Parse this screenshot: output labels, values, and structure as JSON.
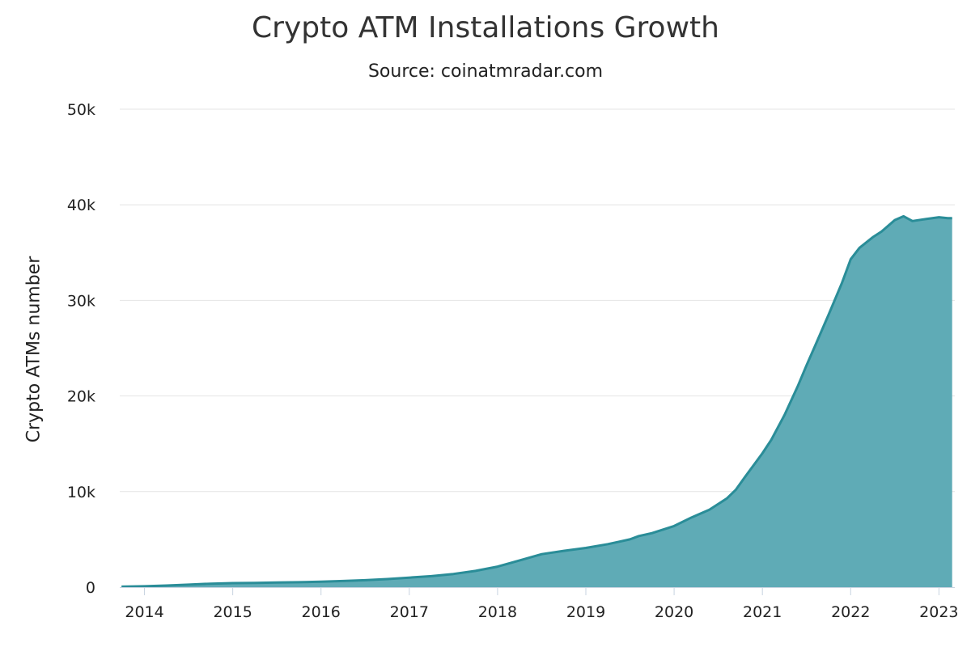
{
  "chart_data": {
    "type": "area",
    "title": "Crypto ATM Installations Growth",
    "subtitle": "Source: coinatmradar.com",
    "xlabel": "",
    "ylabel": "Crypto ATMs number",
    "ylim": [
      0,
      50000
    ],
    "xlim": [
      2013.72,
      2023.18
    ],
    "grid": true,
    "colors": {
      "fill": "#5fabb6",
      "line": "#2a8d98",
      "grid": "#e4e4e4"
    },
    "y_ticks": [
      {
        "value": 0,
        "label": "0"
      },
      {
        "value": 10000,
        "label": "10k"
      },
      {
        "value": 20000,
        "label": "20k"
      },
      {
        "value": 30000,
        "label": "30k"
      },
      {
        "value": 40000,
        "label": "40k"
      },
      {
        "value": 50000,
        "label": "50k"
      }
    ],
    "x_ticks": [
      {
        "value": 2014,
        "label": "2014"
      },
      {
        "value": 2015,
        "label": "2015"
      },
      {
        "value": 2016,
        "label": "2016"
      },
      {
        "value": 2017,
        "label": "2017"
      },
      {
        "value": 2018,
        "label": "2018"
      },
      {
        "value": 2019,
        "label": "2019"
      },
      {
        "value": 2020,
        "label": "2020"
      },
      {
        "value": 2021,
        "label": "2021"
      },
      {
        "value": 2022,
        "label": "2022"
      },
      {
        "value": 2023,
        "label": "2023"
      }
    ],
    "series": [
      {
        "points": [
          [
            2013.74,
            50
          ],
          [
            2014.0,
            90
          ],
          [
            2014.25,
            170
          ],
          [
            2014.5,
            260
          ],
          [
            2014.75,
            360
          ],
          [
            2015.0,
            420
          ],
          [
            2015.25,
            440
          ],
          [
            2015.5,
            490
          ],
          [
            2015.75,
            520
          ],
          [
            2016.0,
            570
          ],
          [
            2016.25,
            640
          ],
          [
            2016.5,
            730
          ],
          [
            2016.75,
            850
          ],
          [
            2017.0,
            1000
          ],
          [
            2017.25,
            1150
          ],
          [
            2017.5,
            1380
          ],
          [
            2017.75,
            1700
          ],
          [
            2018.0,
            2150
          ],
          [
            2018.25,
            2800
          ],
          [
            2018.5,
            3450
          ],
          [
            2018.75,
            3800
          ],
          [
            2019.0,
            4100
          ],
          [
            2019.25,
            4500
          ],
          [
            2019.5,
            5000
          ],
          [
            2019.6,
            5350
          ],
          [
            2019.75,
            5650
          ],
          [
            2020.0,
            6400
          ],
          [
            2020.2,
            7300
          ],
          [
            2020.4,
            8100
          ],
          [
            2020.6,
            9300
          ],
          [
            2020.7,
            10200
          ],
          [
            2020.8,
            11500
          ],
          [
            2021.0,
            14000
          ],
          [
            2021.1,
            15400
          ],
          [
            2021.25,
            18000
          ],
          [
            2021.4,
            21000
          ],
          [
            2021.5,
            23200
          ],
          [
            2021.6,
            25300
          ],
          [
            2021.75,
            28500
          ],
          [
            2021.9,
            31800
          ],
          [
            2022.0,
            34300
          ],
          [
            2022.1,
            35500
          ],
          [
            2022.25,
            36600
          ],
          [
            2022.35,
            37200
          ],
          [
            2022.5,
            38400
          ],
          [
            2022.6,
            38800
          ],
          [
            2022.7,
            38300
          ],
          [
            2022.85,
            38500
          ],
          [
            2023.0,
            38700
          ],
          [
            2023.1,
            38600
          ],
          [
            2023.15,
            38600
          ]
        ]
      }
    ]
  }
}
